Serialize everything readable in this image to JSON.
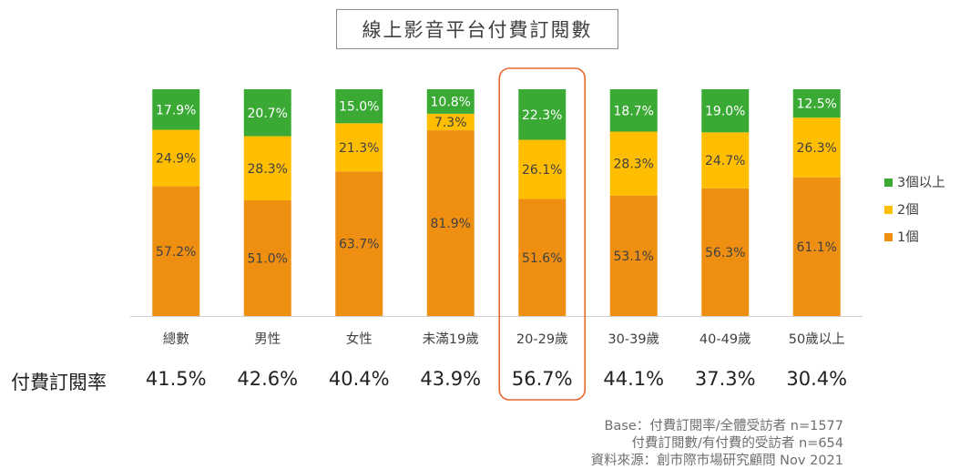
{
  "title": "線上影音平台付費訂閱數",
  "chart_data": {
    "type": "bar",
    "stacked": true,
    "categories": [
      "總數",
      "男性",
      "女性",
      "未滿19歲",
      "20-29歲",
      "30-39歲",
      "40-49歲",
      "50歲以上"
    ],
    "series": [
      {
        "name": "1個",
        "color": "#ef8f12",
        "values": [
          57.2,
          51.0,
          63.7,
          81.9,
          51.6,
          53.1,
          56.3,
          61.1
        ]
      },
      {
        "name": "2個",
        "color": "#ffbf00",
        "values": [
          24.9,
          28.3,
          21.3,
          7.3,
          26.1,
          28.3,
          24.7,
          26.3
        ]
      },
      {
        "name": "3個以上",
        "color": "#3aaa35",
        "values": [
          17.9,
          20.7,
          15.0,
          10.8,
          22.3,
          18.7,
          19.0,
          12.5
        ]
      }
    ],
    "ylim": [
      0,
      100
    ],
    "legend_position": "right",
    "highlight_category": "20-29歲",
    "highlight_color": "#e8672e"
  },
  "rate_row": {
    "label": "付費訂閱率",
    "values": [
      "41.5%",
      "42.6%",
      "40.4%",
      "43.9%",
      "56.7%",
      "44.1%",
      "37.3%",
      "30.4%"
    ]
  },
  "footnotes": [
    "Base：付費訂閱率/全體受訪者 n=1577",
    "付費訂閱數/有付費的受訪者 n=654",
    "資料來源：創市際市場研究顧問 Nov 2021"
  ]
}
